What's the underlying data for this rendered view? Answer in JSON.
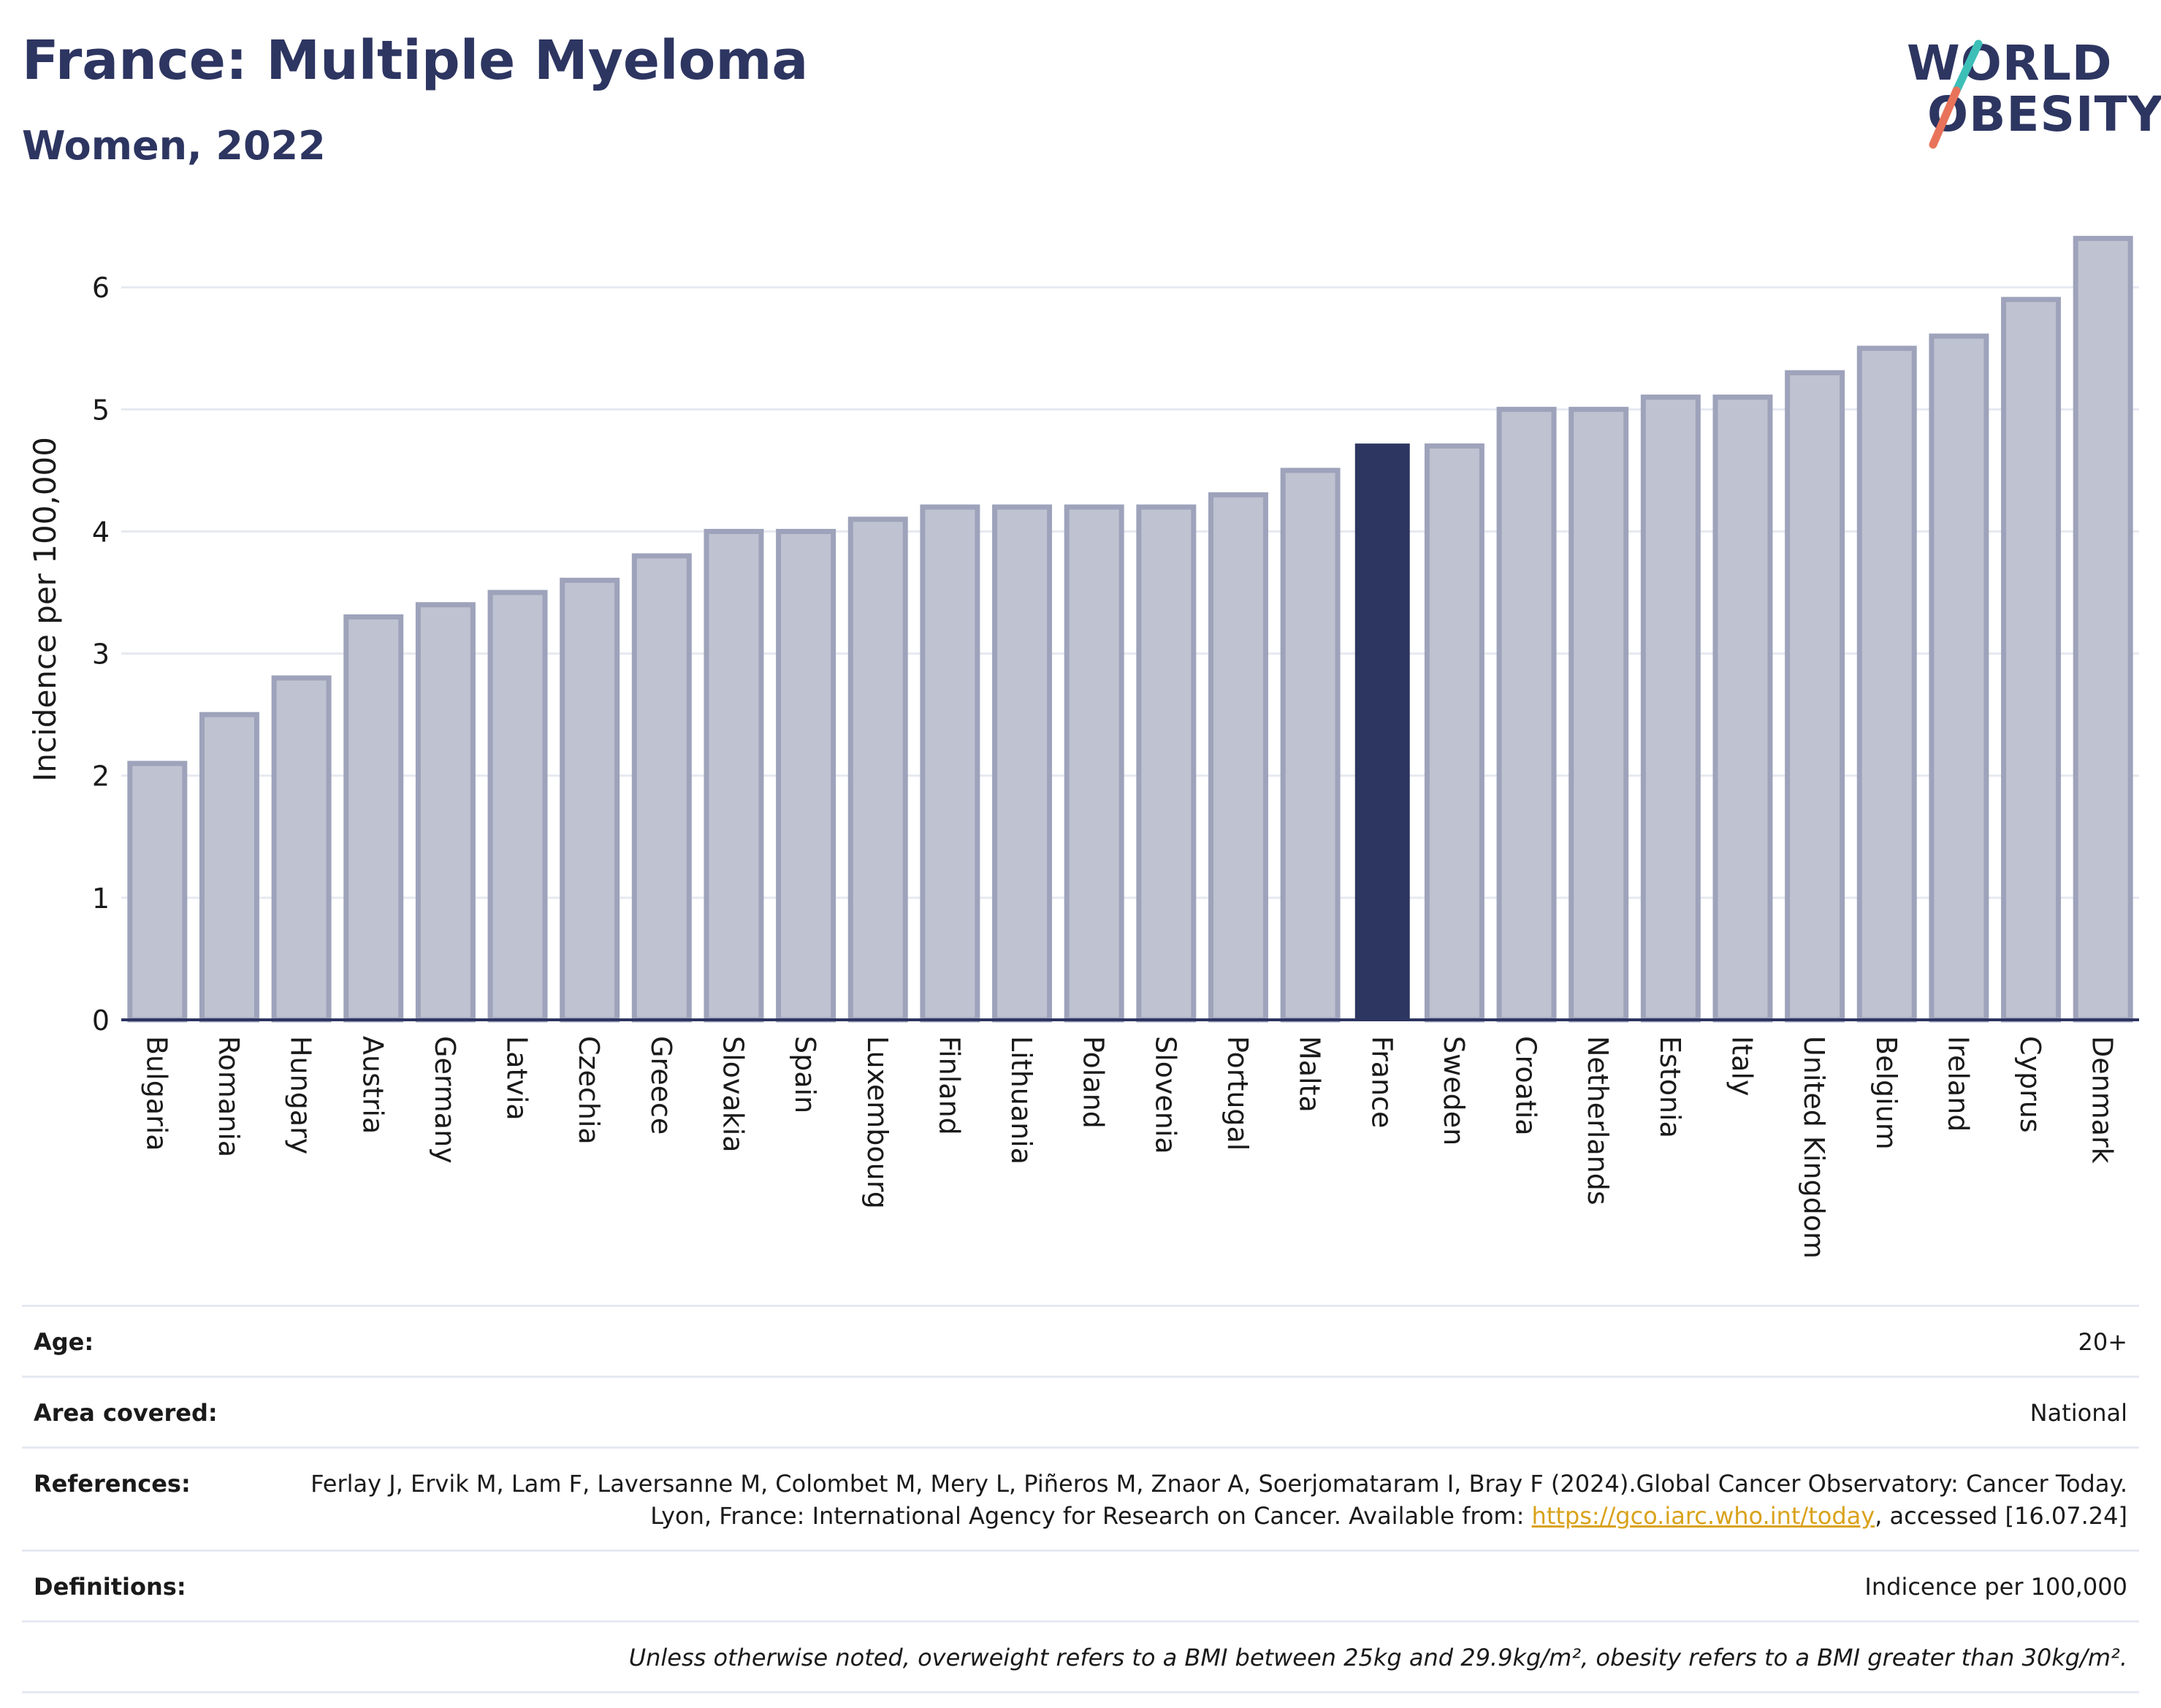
{
  "header": {
    "title": "France: Multiple Myeloma",
    "subtitle": "Women, 2022"
  },
  "logo": {
    "line1": "WORLD",
    "line2": "OBESITY",
    "colors": {
      "text": "#2d3561",
      "slash_teal": "#3dbfb8",
      "slash_coral": "#e8735a"
    }
  },
  "colors": {
    "bar_default_fill": "#bfc2d0",
    "bar_default_stroke": "#9ea3bb",
    "bar_highlight": "#2d3561",
    "axis_text": "#1a1a1a",
    "grid": "#e6e9f0"
  },
  "chart_data": {
    "type": "bar",
    "title": "",
    "xlabel": "",
    "ylabel": "Incidence per 100,000",
    "ylim": [
      0,
      6.45
    ],
    "yticks": [
      0,
      1,
      2,
      3,
      4,
      5,
      6
    ],
    "grid": true,
    "highlight": "France",
    "categories": [
      "Bulgaria",
      "Romania",
      "Hungary",
      "Austria",
      "Germany",
      "Latvia",
      "Czechia",
      "Greece",
      "Slovakia",
      "Spain",
      "Luxembourg",
      "Finland",
      "Lithuania",
      "Poland",
      "Slovenia",
      "Portugal",
      "Malta",
      "France",
      "Sweden",
      "Croatia",
      "Netherlands",
      "Estonia",
      "Italy",
      "United Kingdom",
      "Belgium",
      "Ireland",
      "Cyprus",
      "Denmark"
    ],
    "values": [
      2.1,
      2.5,
      2.8,
      3.3,
      3.4,
      3.5,
      3.6,
      3.8,
      4.0,
      4.0,
      4.1,
      4.2,
      4.2,
      4.2,
      4.2,
      4.3,
      4.5,
      4.72,
      4.7,
      5.0,
      5.0,
      5.1,
      5.1,
      5.3,
      5.5,
      5.6,
      5.9,
      6.4
    ]
  },
  "info": {
    "age_label": "Age:",
    "age_value": "20+",
    "area_label": "Area covered:",
    "area_value": "National",
    "references_label": "References:",
    "references_text_1": "Ferlay J, Ervik M, Lam F, Laversanne M, Colombet M, Mery L, Piñeros M, Znaor A, Soerjomataram I, Bray F (2024).Global Cancer Observatory: Cancer Today. Lyon, France: International Agency for Research on Cancer. Available from: ",
    "references_link": "https://gco.iarc.who.int/today",
    "references_text_2": ", accessed [16.07.24]",
    "definitions_label": "Definitions:",
    "definitions_value": "Indicence per 100,000",
    "note": "Unless otherwise noted, overweight refers to a BMI between 25kg and 29.9kg/m², obesity refers to a BMI greater than 30kg/m²."
  }
}
